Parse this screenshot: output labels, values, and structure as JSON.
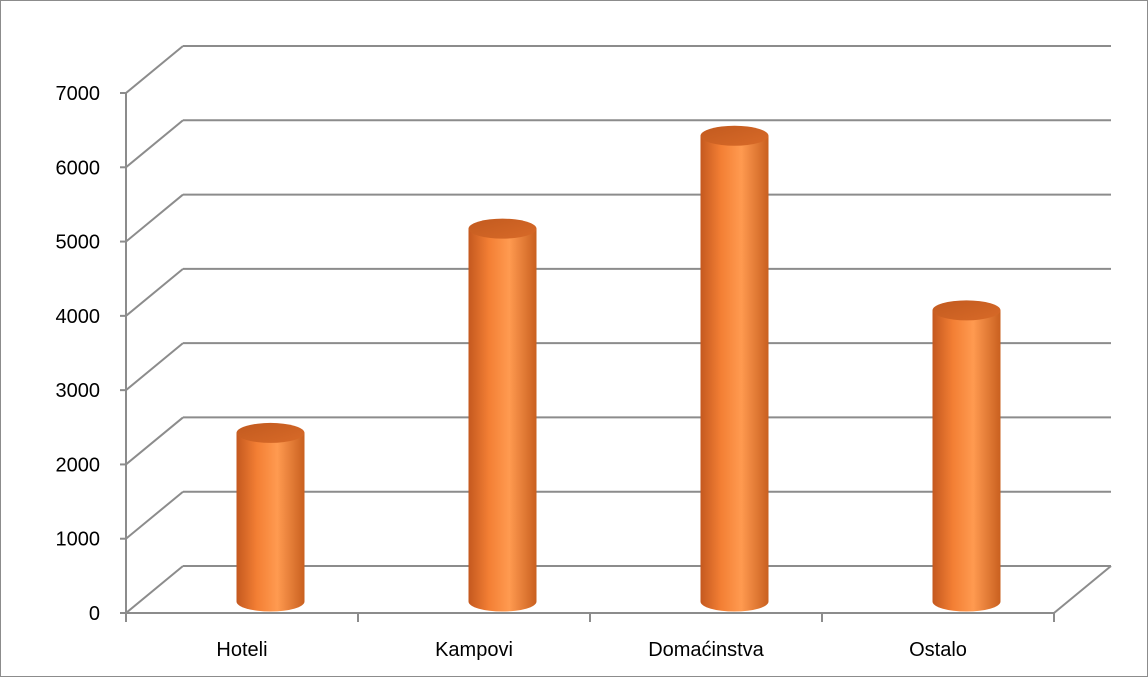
{
  "chart_data": {
    "type": "bar",
    "style": "3d-cylinder",
    "title": "",
    "xlabel": "",
    "ylabel": "",
    "categories": [
      "Hoteli",
      "Kampovi",
      "Domaćinstva",
      "Ostalo"
    ],
    "values": [
      2350,
      5100,
      6350,
      4000
    ],
    "ylim": [
      0,
      7000
    ],
    "yticks": [
      "0",
      "1000",
      "2000",
      "3000",
      "4000",
      "5000",
      "6000",
      "7000"
    ],
    "grid": true,
    "legend": "none",
    "bar_color": "#F79646"
  }
}
